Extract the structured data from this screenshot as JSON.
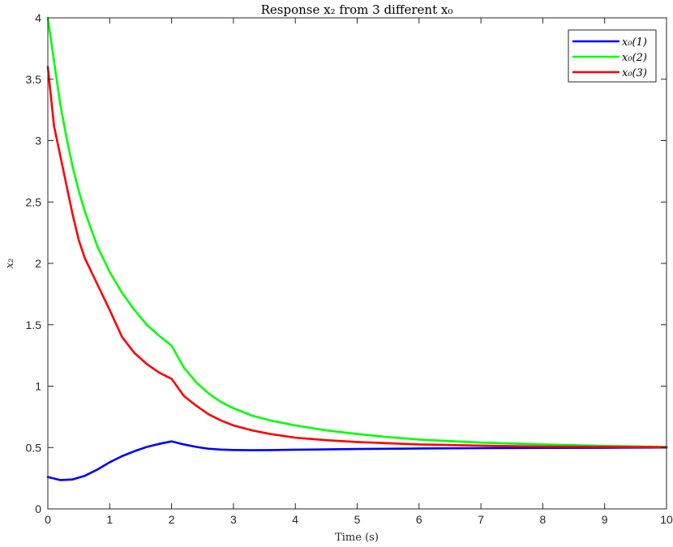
{
  "chart_data": {
    "type": "line",
    "title": "Response x₂ from 3 different x₀",
    "xlabel": "Time (s)",
    "ylabel": "x₂",
    "xlim": [
      0,
      10
    ],
    "ylim": [
      0,
      4
    ],
    "xticks": [
      0,
      1,
      2,
      3,
      4,
      5,
      6,
      7,
      8,
      9,
      10
    ],
    "yticks": [
      0,
      0.5,
      1,
      1.5,
      2,
      2.5,
      3,
      3.5,
      4
    ],
    "xtick_labels": [
      "0",
      "1",
      "2",
      "3",
      "4",
      "5",
      "6",
      "7",
      "8",
      "9",
      "10"
    ],
    "ytick_labels": [
      "0",
      "0.5",
      "1",
      "1.5",
      "2",
      "2.5",
      "3",
      "3.5",
      "4"
    ],
    "grid": false,
    "legend_position": "top-right",
    "series": [
      {
        "name": "x₀(1)",
        "color": "#0000ff",
        "x": [
          0,
          0.2,
          0.4,
          0.6,
          0.8,
          1.0,
          1.2,
          1.4,
          1.6,
          1.8,
          2.0,
          2.2,
          2.4,
          2.6,
          2.8,
          3.0,
          3.3,
          3.6,
          4.0,
          5.0,
          6.0,
          7.0,
          8.0,
          9.0,
          10.0
        ],
        "y": [
          0.26,
          0.235,
          0.24,
          0.27,
          0.32,
          0.38,
          0.43,
          0.47,
          0.505,
          0.53,
          0.55,
          0.525,
          0.505,
          0.49,
          0.483,
          0.48,
          0.478,
          0.479,
          0.482,
          0.488,
          0.492,
          0.495,
          0.497,
          0.498,
          0.5
        ]
      },
      {
        "name": "x₀(2)",
        "color": "#00ff00",
        "x": [
          0,
          0.1,
          0.2,
          0.3,
          0.4,
          0.5,
          0.6,
          0.8,
          1.0,
          1.2,
          1.4,
          1.6,
          1.8,
          2.0,
          2.2,
          2.4,
          2.6,
          2.8,
          3.0,
          3.3,
          3.6,
          4.0,
          4.5,
          5.0,
          5.5,
          6.0,
          7.0,
          8.0,
          9.0,
          10.0
        ],
        "y": [
          4.0,
          3.65,
          3.3,
          3.03,
          2.79,
          2.59,
          2.42,
          2.14,
          1.93,
          1.76,
          1.62,
          1.5,
          1.41,
          1.33,
          1.15,
          1.03,
          0.94,
          0.87,
          0.82,
          0.76,
          0.72,
          0.68,
          0.64,
          0.61,
          0.585,
          0.565,
          0.54,
          0.525,
          0.513,
          0.505
        ]
      },
      {
        "name": "x₀(3)",
        "color": "#ff0000",
        "x": [
          0,
          0.1,
          0.2,
          0.3,
          0.4,
          0.5,
          0.6,
          0.8,
          1.0,
          1.2,
          1.4,
          1.6,
          1.8,
          2.0,
          2.2,
          2.4,
          2.6,
          2.8,
          3.0,
          3.3,
          3.6,
          4.0,
          4.5,
          5.0,
          5.5,
          6.0,
          7.0,
          8.0,
          9.0,
          10.0
        ],
        "y": [
          3.6,
          3.12,
          2.88,
          2.64,
          2.4,
          2.19,
          2.04,
          1.83,
          1.62,
          1.4,
          1.27,
          1.18,
          1.11,
          1.06,
          0.92,
          0.84,
          0.77,
          0.72,
          0.68,
          0.64,
          0.61,
          0.58,
          0.56,
          0.545,
          0.535,
          0.525,
          0.515,
          0.508,
          0.505,
          0.503
        ]
      }
    ]
  }
}
